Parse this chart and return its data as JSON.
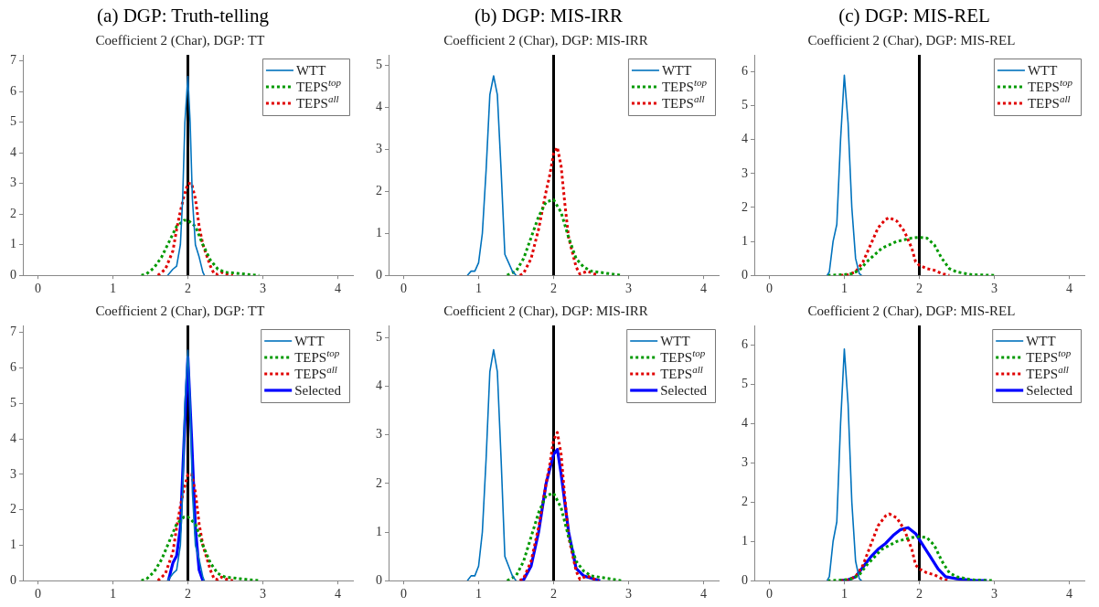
{
  "chart_data": [
    {
      "type": "line",
      "title": "(a) DGP: Truth-telling",
      "subtitle": "Coefficient 2 (Char), DGP: TT",
      "xlim": [
        -0.2,
        4.2
      ],
      "xticks": [
        0,
        1,
        2,
        3,
        4
      ],
      "ylim": [
        0,
        7.2
      ],
      "yticks": [
        0,
        1,
        2,
        3,
        4,
        5,
        6,
        7
      ],
      "legend": "top right",
      "ref_lines": [
        {
          "axis": "x",
          "value": 2,
          "color": "#000000"
        }
      ],
      "series": [
        {
          "name": "WTT",
          "color": "#0072bd",
          "line_style": "solid",
          "x": [
            1.73,
            1.8,
            1.85,
            1.9,
            1.93,
            1.96,
            2.0,
            2.03,
            2.06,
            2.1,
            2.15,
            2.2,
            2.22
          ],
          "values": [
            0,
            0.2,
            0.3,
            1.0,
            2.5,
            5,
            6.5,
            5,
            2.5,
            1.0,
            0.6,
            0.1,
            0
          ]
        },
        {
          "name": "TEPS$^{top}$",
          "color": "#009900",
          "line_style": "dotted",
          "x": [
            1.38,
            1.45,
            1.55,
            1.65,
            1.75,
            1.85,
            1.95,
            2.0,
            2.1,
            2.2,
            2.3,
            2.4,
            2.5,
            2.6,
            2.8,
            2.95
          ],
          "values": [
            0,
            0.05,
            0.25,
            0.6,
            1.1,
            1.6,
            1.8,
            1.8,
            1.6,
            1.0,
            0.5,
            0.2,
            0.1,
            0.08,
            0.03,
            0
          ]
        },
        {
          "name": "TEPS$^{all}$",
          "color": "#e00000",
          "line_style": "dotted",
          "x": [
            1.6,
            1.7,
            1.8,
            1.85,
            1.9,
            1.95,
            2.0,
            2.05,
            2.1,
            2.15,
            2.2,
            2.3,
            2.35,
            2.4,
            2.45,
            2.5,
            2.6
          ],
          "values": [
            0,
            0.2,
            0.8,
            1.5,
            2.1,
            2.6,
            3.0,
            3.0,
            2.5,
            1.6,
            1.0,
            0.3,
            0.05,
            0.03,
            0.1,
            0.05,
            0
          ]
        }
      ]
    },
    {
      "type": "line",
      "title": "(b) DGP: MIS-IRR",
      "subtitle": "Coefficient 2 (Char), DGP: MIS-IRR",
      "xlim": [
        -0.2,
        4.2
      ],
      "xticks": [
        0,
        1,
        2,
        3,
        4
      ],
      "ylim": [
        0,
        5.25
      ],
      "yticks": [
        0,
        1,
        2,
        3,
        4,
        5
      ],
      "legend": "top right",
      "ref_lines": [
        {
          "axis": "x",
          "value": 2,
          "color": "#000000"
        }
      ],
      "series": [
        {
          "name": "WTT",
          "color": "#0072bd",
          "line_style": "solid",
          "x": [
            0.85,
            0.9,
            0.95,
            1.0,
            1.05,
            1.1,
            1.15,
            1.2,
            1.25,
            1.3,
            1.35,
            1.4,
            1.45,
            1.5
          ],
          "values": [
            0,
            0.1,
            0.1,
            0.3,
            1.0,
            2.5,
            4.3,
            4.75,
            4.3,
            2.5,
            0.5,
            0.3,
            0.1,
            0
          ]
        },
        {
          "name": "TEPS$^{top}$",
          "color": "#009900",
          "line_style": "dotted",
          "x": [
            1.38,
            1.5,
            1.6,
            1.7,
            1.8,
            1.9,
            2.0,
            2.1,
            2.2,
            2.3,
            2.4,
            2.5,
            2.7,
            2.9
          ],
          "values": [
            0,
            0.1,
            0.4,
            0.9,
            1.4,
            1.75,
            1.8,
            1.5,
            0.9,
            0.4,
            0.2,
            0.1,
            0.05,
            0
          ]
        },
        {
          "name": "TEPS$^{all}$",
          "color": "#e00000",
          "line_style": "dotted",
          "x": [
            1.55,
            1.6,
            1.7,
            1.8,
            1.9,
            1.95,
            2.0,
            2.05,
            2.1,
            2.15,
            2.2,
            2.3,
            2.35,
            2.45,
            2.55,
            2.6
          ],
          "values": [
            0,
            0.05,
            0.4,
            1.1,
            2.0,
            2.4,
            2.9,
            3.05,
            2.6,
            1.7,
            0.9,
            0.2,
            0.03,
            0.1,
            0.03,
            0
          ]
        }
      ]
    },
    {
      "type": "line",
      "title": "(c) DGP: MIS-REL",
      "subtitle": "Coefficient 2 (Char), DGP: MIS-REL",
      "xlim": [
        -0.2,
        4.2
      ],
      "xticks": [
        0,
        1,
        2,
        3,
        4
      ],
      "ylim": [
        0,
        6.5
      ],
      "yticks": [
        0,
        1,
        2,
        3,
        4,
        5,
        6
      ],
      "legend": "top right",
      "ref_lines": [
        {
          "axis": "x",
          "value": 2,
          "color": "#000000"
        }
      ],
      "series": [
        {
          "name": "WTT",
          "color": "#0072bd",
          "line_style": "solid",
          "x": [
            0.77,
            0.8,
            0.85,
            0.9,
            0.95,
            1.0,
            1.05,
            1.1,
            1.15,
            1.2,
            1.23
          ],
          "values": [
            0,
            0.1,
            1.0,
            1.5,
            4,
            5.9,
            4.5,
            2,
            0.5,
            0.05,
            0
          ]
        },
        {
          "name": "TEPS$^{top}$",
          "color": "#009900",
          "line_style": "dotted",
          "x": [
            0.78,
            1.0,
            1.1,
            1.2,
            1.3,
            1.4,
            1.5,
            1.6,
            1.7,
            1.8,
            1.9,
            2.0,
            2.1,
            2.2,
            2.3,
            2.4,
            2.5,
            2.7,
            3.0
          ],
          "values": [
            0,
            0.02,
            0.05,
            0.15,
            0.4,
            0.6,
            0.8,
            0.9,
            1.0,
            1.05,
            1.1,
            1.12,
            1.1,
            0.9,
            0.5,
            0.2,
            0.1,
            0.02,
            0
          ]
        },
        {
          "name": "TEPS$^{all}$",
          "color": "#e00000",
          "line_style": "dotted",
          "x": [
            0.95,
            1.05,
            1.15,
            1.25,
            1.35,
            1.45,
            1.55,
            1.6,
            1.7,
            1.8,
            1.9,
            1.95,
            2.0,
            2.1,
            2.2,
            2.3,
            2.4
          ],
          "values": [
            0,
            0.02,
            0.1,
            0.4,
            0.9,
            1.4,
            1.65,
            1.7,
            1.6,
            1.3,
            0.8,
            0.4,
            0.3,
            0.2,
            0.15,
            0.05,
            0
          ]
        }
      ]
    },
    {
      "type": "line",
      "title": "Coefficient 2 (Char), DGP: TT",
      "xlim": [
        -0.2,
        4.2
      ],
      "xticks": [
        0,
        1,
        2,
        3,
        4
      ],
      "ylim": [
        0,
        7.2
      ],
      "yticks": [
        0,
        1,
        2,
        3,
        4,
        5,
        6,
        7
      ],
      "legend": "top right",
      "ref_lines": [
        {
          "axis": "x",
          "value": 2,
          "color": "#000000"
        }
      ],
      "series": [
        {
          "name": "WTT",
          "color": "#0072bd",
          "line_style": "solid",
          "x": [
            1.73,
            1.8,
            1.85,
            1.9,
            1.93,
            1.96,
            2.0,
            2.03,
            2.06,
            2.1,
            2.15,
            2.2,
            2.22
          ],
          "values": [
            0,
            0.2,
            0.3,
            1.0,
            2.5,
            5,
            6.5,
            5,
            2.5,
            1.0,
            0.6,
            0.1,
            0
          ]
        },
        {
          "name": "TEPS$^{top}$",
          "color": "#009900",
          "line_style": "dotted",
          "x": [
            1.38,
            1.45,
            1.55,
            1.65,
            1.75,
            1.85,
            1.95,
            2.0,
            2.1,
            2.2,
            2.3,
            2.4,
            2.5,
            2.6,
            2.8,
            2.95
          ],
          "values": [
            0,
            0.05,
            0.25,
            0.6,
            1.1,
            1.6,
            1.8,
            1.8,
            1.6,
            1.0,
            0.5,
            0.2,
            0.1,
            0.08,
            0.03,
            0
          ]
        },
        {
          "name": "TEPS$^{all}$",
          "color": "#e00000",
          "line_style": "dotted",
          "x": [
            1.6,
            1.7,
            1.8,
            1.85,
            1.9,
            1.95,
            2.0,
            2.05,
            2.1,
            2.15,
            2.2,
            2.3,
            2.35,
            2.4,
            2.45,
            2.5,
            2.6
          ],
          "values": [
            0,
            0.2,
            0.8,
            1.5,
            2.1,
            2.6,
            3.0,
            3.0,
            2.5,
            1.6,
            1.0,
            0.3,
            0.05,
            0.03,
            0.1,
            0.05,
            0
          ]
        },
        {
          "name": "Selected",
          "color": "#0000ff",
          "line_style": "solid",
          "x": [
            1.74,
            1.8,
            1.85,
            1.9,
            1.95,
            2.0,
            2.05,
            2.1,
            2.15,
            2.2
          ],
          "values": [
            0,
            0.5,
            0.7,
            1.5,
            4,
            6.3,
            4,
            1.5,
            0.3,
            0
          ]
        }
      ]
    },
    {
      "type": "line",
      "title": "Coefficient 2 (Char), DGP: MIS-IRR",
      "xlim": [
        -0.2,
        4.2
      ],
      "xticks": [
        0,
        1,
        2,
        3,
        4
      ],
      "ylim": [
        0,
        5.25
      ],
      "yticks": [
        0,
        1,
        2,
        3,
        4,
        5
      ],
      "legend": "top right",
      "ref_lines": [
        {
          "axis": "x",
          "value": 2,
          "color": "#000000"
        }
      ],
      "series": [
        {
          "name": "WTT",
          "color": "#0072bd",
          "line_style": "solid",
          "x": [
            0.85,
            0.9,
            0.95,
            1.0,
            1.05,
            1.1,
            1.15,
            1.2,
            1.25,
            1.3,
            1.35,
            1.4,
            1.45,
            1.5
          ],
          "values": [
            0,
            0.1,
            0.1,
            0.3,
            1.0,
            2.5,
            4.3,
            4.75,
            4.3,
            2.5,
            0.5,
            0.3,
            0.1,
            0
          ]
        },
        {
          "name": "TEPS$^{top}$",
          "color": "#009900",
          "line_style": "dotted",
          "x": [
            1.38,
            1.5,
            1.6,
            1.7,
            1.8,
            1.9,
            2.0,
            2.1,
            2.2,
            2.3,
            2.4,
            2.5,
            2.7,
            2.9
          ],
          "values": [
            0,
            0.1,
            0.4,
            0.9,
            1.4,
            1.75,
            1.8,
            1.5,
            0.9,
            0.4,
            0.2,
            0.1,
            0.05,
            0
          ]
        },
        {
          "name": "TEPS$^{all}$",
          "color": "#e00000",
          "line_style": "dotted",
          "x": [
            1.55,
            1.6,
            1.7,
            1.8,
            1.9,
            1.95,
            2.0,
            2.05,
            2.1,
            2.15,
            2.2,
            2.3,
            2.35,
            2.45,
            2.55,
            2.6
          ],
          "values": [
            0,
            0.05,
            0.4,
            1.1,
            2.0,
            2.4,
            2.9,
            3.05,
            2.6,
            1.7,
            0.9,
            0.2,
            0.03,
            0.1,
            0.03,
            0
          ]
        },
        {
          "name": "Selected",
          "color": "#0000ff",
          "line_style": "solid",
          "x": [
            1.55,
            1.6,
            1.7,
            1.8,
            1.9,
            2.0,
            2.05,
            2.1,
            2.2,
            2.3,
            2.4,
            2.5,
            2.62
          ],
          "values": [
            0,
            0.02,
            0.3,
            1.0,
            2.0,
            2.6,
            2.7,
            2.2,
            1.0,
            0.25,
            0.1,
            0.05,
            0
          ]
        }
      ]
    },
    {
      "type": "line",
      "title": "Coefficient 2 (Char), DGP: MIS-REL",
      "xlim": [
        -0.2,
        4.2
      ],
      "xticks": [
        0,
        1,
        2,
        3,
        4
      ],
      "ylim": [
        0,
        6.5
      ],
      "yticks": [
        0,
        1,
        2,
        3,
        4,
        5,
        6
      ],
      "legend": "top right",
      "ref_lines": [
        {
          "axis": "x",
          "value": 2,
          "color": "#000000"
        }
      ],
      "series": [
        {
          "name": "WTT",
          "color": "#0072bd",
          "line_style": "solid",
          "x": [
            0.77,
            0.8,
            0.85,
            0.9,
            0.95,
            1.0,
            1.05,
            1.1,
            1.15,
            1.2,
            1.23
          ],
          "values": [
            0,
            0.1,
            1.0,
            1.5,
            4,
            5.9,
            4.5,
            2,
            0.5,
            0.05,
            0
          ]
        },
        {
          "name": "TEPS$^{top}$",
          "color": "#009900",
          "line_style": "dotted",
          "x": [
            0.78,
            1.0,
            1.1,
            1.2,
            1.3,
            1.4,
            1.5,
            1.6,
            1.7,
            1.8,
            1.9,
            2.0,
            2.1,
            2.2,
            2.3,
            2.4,
            2.5,
            2.7,
            3.0
          ],
          "values": [
            0,
            0.02,
            0.05,
            0.15,
            0.4,
            0.6,
            0.8,
            0.9,
            1.0,
            1.05,
            1.1,
            1.12,
            1.1,
            0.9,
            0.5,
            0.2,
            0.1,
            0.02,
            0
          ]
        },
        {
          "name": "TEPS$^{all}$",
          "color": "#e00000",
          "line_style": "dotted",
          "x": [
            0.95,
            1.05,
            1.15,
            1.25,
            1.35,
            1.45,
            1.55,
            1.6,
            1.7,
            1.8,
            1.9,
            1.95,
            2.0,
            2.1,
            2.2,
            2.3,
            2.4
          ],
          "values": [
            0,
            0.02,
            0.1,
            0.4,
            0.9,
            1.4,
            1.65,
            1.7,
            1.6,
            1.3,
            0.8,
            0.4,
            0.3,
            0.2,
            0.15,
            0.05,
            0
          ]
        },
        {
          "name": "Selected",
          "color": "#0000ff",
          "line_style": "solid",
          "x": [
            0.95,
            1.05,
            1.15,
            1.25,
            1.35,
            1.45,
            1.55,
            1.65,
            1.75,
            1.85,
            1.95,
            2.05,
            2.15,
            2.25,
            2.35,
            2.5,
            2.7,
            2.9
          ],
          "values": [
            0,
            0.02,
            0.1,
            0.35,
            0.6,
            0.8,
            0.95,
            1.15,
            1.3,
            1.35,
            1.2,
            0.9,
            0.6,
            0.3,
            0.1,
            0.05,
            0.01,
            0
          ]
        }
      ]
    }
  ]
}
